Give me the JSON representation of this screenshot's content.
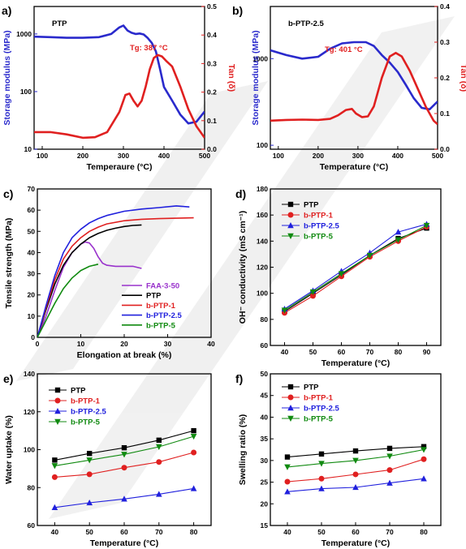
{
  "chart_data": [
    {
      "id": "a",
      "type": "line",
      "panel_label": "a)",
      "inset_label": "PTP",
      "annotation": "Tg: 387 °C",
      "xlabel": "Temperaure (°C)",
      "ylabel_left": "Storage modulus (MPa)",
      "ylabel_right": "Tan (δ)",
      "xlim": [
        80,
        500
      ],
      "xticks": [
        "100",
        "200",
        "300",
        "400",
        "500"
      ],
      "xtick_values": [
        100,
        200,
        300,
        400,
        500
      ],
      "ylim_left": [
        10,
        3000
      ],
      "yscale_left": "log",
      "yticks_left": [
        "10",
        "100",
        "1000"
      ],
      "ytick_values_left": [
        10,
        100,
        1000
      ],
      "ylim_right": [
        0.0,
        0.5
      ],
      "yticks_right": [
        "0.0",
        "0.1",
        "0.2",
        "0.3",
        "0.4",
        "0.5"
      ],
      "ytick_values_right": [
        0.0,
        0.1,
        0.2,
        0.3,
        0.4,
        0.5
      ],
      "series": [
        {
          "axis": "left",
          "color": "#2a2acc",
          "x": [
            80,
            120,
            160,
            200,
            240,
            270,
            290,
            300,
            310,
            320,
            330,
            340,
            350,
            360,
            370,
            380,
            390,
            400,
            420,
            440,
            460,
            480,
            500
          ],
          "y": [
            900,
            880,
            860,
            860,
            880,
            1000,
            1300,
            1400,
            1150,
            1050,
            1000,
            1020,
            980,
            850,
            700,
            500,
            250,
            120,
            70,
            40,
            28,
            30,
            45
          ]
        },
        {
          "axis": "right",
          "color": "#e02020",
          "x": [
            80,
            120,
            160,
            200,
            230,
            260,
            290,
            305,
            315,
            325,
            335,
            345,
            355,
            365,
            375,
            385,
            395,
            405,
            420,
            440,
            460,
            480,
            500
          ],
          "y": [
            0.06,
            0.06,
            0.052,
            0.04,
            0.042,
            0.06,
            0.13,
            0.19,
            0.195,
            0.17,
            0.15,
            0.17,
            0.22,
            0.28,
            0.32,
            0.33,
            0.325,
            0.31,
            0.29,
            0.22,
            0.14,
            0.08,
            0.04
          ]
        }
      ]
    },
    {
      "id": "b",
      "type": "line",
      "panel_label": "b)",
      "inset_label": "b-PTP-2.5",
      "annotation": "Tg: 401 °C",
      "xlabel": "Temperature (°C)",
      "ylabel_left": "Storage modulus (MPa)",
      "ylabel_right": "Tan (δ)",
      "xlim": [
        80,
        500
      ],
      "xticks": [
        "100",
        "200",
        "300",
        "400",
        "500"
      ],
      "xtick_values": [
        100,
        200,
        300,
        400,
        500
      ],
      "ylim_left": [
        90,
        4000
      ],
      "yscale_left": "log",
      "yticks_left": [
        "100",
        "1000"
      ],
      "ytick_values_left": [
        100,
        1000
      ],
      "ylim_right": [
        0.0,
        0.4
      ],
      "yticks_right": [
        "0.0",
        "0.1",
        "0.2",
        "0.3",
        "0.4"
      ],
      "ytick_values_right": [
        0.0,
        0.1,
        0.2,
        0.3,
        0.4
      ],
      "series": [
        {
          "axis": "left",
          "color": "#2a2acc",
          "x": [
            80,
            120,
            160,
            200,
            230,
            260,
            290,
            320,
            340,
            360,
            380,
            400,
            420,
            440,
            460,
            480,
            500
          ],
          "y": [
            1250,
            1100,
            1000,
            1050,
            1300,
            1500,
            1550,
            1550,
            1400,
            1100,
            900,
            700,
            500,
            350,
            270,
            260,
            320
          ]
        },
        {
          "axis": "right",
          "color": "#e02020",
          "x": [
            80,
            120,
            160,
            200,
            230,
            250,
            270,
            285,
            295,
            310,
            325,
            340,
            360,
            380,
            395,
            410,
            430,
            450,
            470,
            490,
            500
          ],
          "y": [
            0.08,
            0.082,
            0.083,
            0.082,
            0.085,
            0.095,
            0.11,
            0.113,
            0.1,
            0.09,
            0.092,
            0.12,
            0.2,
            0.26,
            0.27,
            0.26,
            0.22,
            0.17,
            0.12,
            0.08,
            0.07
          ]
        }
      ]
    },
    {
      "id": "c",
      "type": "line",
      "panel_label": "c)",
      "xlabel": "Elongation at break (%)",
      "ylabel": "Tensile strength (MPa)",
      "xlim": [
        0,
        40
      ],
      "xticks": [
        "0",
        "10",
        "20",
        "30",
        "40"
      ],
      "xtick_values": [
        0,
        10,
        20,
        30,
        40
      ],
      "ylim": [
        0,
        70
      ],
      "yticks": [
        "0",
        "10",
        "20",
        "30",
        "40",
        "50",
        "60",
        "70"
      ],
      "ytick_values": [
        0,
        10,
        20,
        30,
        40,
        50,
        60,
        70
      ],
      "legend_position": "lower-right",
      "series": [
        {
          "name": "FAA-3-50",
          "color": "#9932cc",
          "x": [
            0,
            2,
            4,
            6,
            8,
            10,
            11,
            12,
            13,
            14,
            15,
            16,
            18,
            20,
            22,
            24
          ],
          "y": [
            0,
            10,
            22,
            33,
            40,
            44,
            45,
            44.5,
            42,
            38,
            35,
            34,
            33.5,
            33.5,
            33.5,
            32.5
          ]
        },
        {
          "name": "PTP",
          "color": "#000000",
          "x": [
            0,
            2,
            4,
            6,
            8,
            10,
            12,
            14,
            16,
            18,
            20,
            22,
            24
          ],
          "y": [
            0,
            13,
            25,
            34,
            40,
            44,
            47,
            49,
            50.5,
            51.5,
            52.3,
            52.8,
            53
          ]
        },
        {
          "name": "b-PTP-1",
          "color": "#e02020",
          "x": [
            0,
            2,
            4,
            6,
            8,
            10,
            12,
            14,
            16,
            20,
            24,
            28,
            32,
            36
          ],
          "y": [
            0,
            14,
            27,
            37,
            43,
            47,
            50,
            52,
            53.5,
            55,
            55.7,
            56,
            56.2,
            56.4
          ]
        },
        {
          "name": "b-PTP-2.5",
          "color": "#2020dd",
          "x": [
            0,
            2,
            4,
            6,
            8,
            10,
            12,
            14,
            16,
            20,
            24,
            28,
            32,
            35
          ],
          "y": [
            0,
            15,
            29,
            40,
            47,
            51,
            54,
            56,
            57.5,
            59.5,
            60.5,
            61.2,
            62,
            61.5
          ]
        },
        {
          "name": "b-PTP-5",
          "color": "#108a10",
          "x": [
            0,
            2,
            4,
            6,
            8,
            10,
            12,
            14
          ],
          "y": [
            0,
            8,
            16,
            23,
            28,
            31.5,
            33.5,
            34.5
          ]
        }
      ]
    },
    {
      "id": "d",
      "type": "line",
      "panel_label": "d)",
      "xlabel": "Temperature (°C)",
      "ylabel": "OH⁻ conductivity (mS cm⁻¹)",
      "xlim": [
        35,
        95
      ],
      "xticks": [
        "40",
        "50",
        "60",
        "70",
        "80",
        "90"
      ],
      "xtick_values": [
        40,
        50,
        60,
        70,
        80,
        90
      ],
      "ylim": [
        60,
        180
      ],
      "yticks": [
        "60",
        "80",
        "100",
        "120",
        "140",
        "160",
        "180"
      ],
      "ytick_values": [
        60,
        80,
        100,
        120,
        140,
        160,
        180
      ],
      "legend_position": "top-left",
      "x": [
        40,
        50,
        60,
        70,
        80,
        90
      ],
      "series": [
        {
          "name": "PTP",
          "color": "#000000",
          "marker": "square",
          "values": [
            86,
            100,
            114,
            129,
            142,
            150
          ]
        },
        {
          "name": "b-PTP-1",
          "color": "#e02020",
          "marker": "circle",
          "values": [
            85,
            98,
            113,
            128,
            140,
            151
          ]
        },
        {
          "name": "b-PTP-2.5",
          "color": "#2020dd",
          "marker": "triangle-up",
          "values": [
            88,
            102,
            117,
            131,
            147,
            153
          ]
        },
        {
          "name": "b-PTP-5",
          "color": "#108a10",
          "marker": "triangle-down",
          "values": [
            87,
            101,
            115,
            129,
            141,
            152
          ]
        }
      ]
    },
    {
      "id": "e",
      "type": "line",
      "panel_label": "e)",
      "xlabel": "Temperature (°C)",
      "ylabel": "Water uptake (%)",
      "xlim": [
        35,
        85
      ],
      "xticks": [
        "40",
        "50",
        "60",
        "70",
        "80"
      ],
      "xtick_values": [
        40,
        50,
        60,
        70,
        80
      ],
      "ylim": [
        60,
        140
      ],
      "yticks": [
        "60",
        "80",
        "100",
        "120",
        "140"
      ],
      "ytick_values": [
        60,
        80,
        100,
        120,
        140
      ],
      "legend_position": "top-left",
      "x": [
        40,
        50,
        60,
        70,
        80
      ],
      "series": [
        {
          "name": "PTP",
          "color": "#000000",
          "marker": "square",
          "values": [
            94.5,
            98,
            101,
            105,
            110
          ]
        },
        {
          "name": "b-PTP-1",
          "color": "#e02020",
          "marker": "circle",
          "values": [
            85.5,
            87,
            90.5,
            93.5,
            98.5
          ]
        },
        {
          "name": "b-PTP-2.5",
          "color": "#2020dd",
          "marker": "triangle-up",
          "values": [
            69.5,
            72,
            74,
            76.5,
            79.5
          ]
        },
        {
          "name": "b-PTP-5",
          "color": "#108a10",
          "marker": "triangle-down",
          "values": [
            91.5,
            94.5,
            97.5,
            101.5,
            107
          ]
        }
      ]
    },
    {
      "id": "f",
      "type": "line",
      "panel_label": "f)",
      "xlabel": "Temperature (°C)",
      "ylabel": "Swelling ratio (%)",
      "xlim": [
        35,
        85
      ],
      "xticks": [
        "40",
        "50",
        "60",
        "70",
        "80"
      ],
      "xtick_values": [
        40,
        50,
        60,
        70,
        80
      ],
      "ylim": [
        15,
        50
      ],
      "yticks": [
        "15",
        "20",
        "25",
        "30",
        "35",
        "40",
        "45",
        "50"
      ],
      "ytick_values": [
        15,
        20,
        25,
        30,
        35,
        40,
        45,
        50
      ],
      "legend_position": "top-left",
      "x": [
        40,
        50,
        60,
        70,
        80
      ],
      "series": [
        {
          "name": "PTP",
          "color": "#000000",
          "marker": "square",
          "values": [
            30.8,
            31.5,
            32.2,
            32.8,
            33.2
          ]
        },
        {
          "name": "b-PTP-1",
          "color": "#e02020",
          "marker": "circle",
          "values": [
            25.1,
            25.8,
            26.8,
            27.8,
            30.3
          ]
        },
        {
          "name": "b-PTP-2.5",
          "color": "#2020dd",
          "marker": "triangle-up",
          "values": [
            22.8,
            23.5,
            23.8,
            24.8,
            25.8
          ]
        },
        {
          "name": "b-PTP-5",
          "color": "#108a10",
          "marker": "triangle-down",
          "values": [
            28.5,
            29.3,
            30,
            31,
            32.5
          ]
        }
      ]
    }
  ]
}
